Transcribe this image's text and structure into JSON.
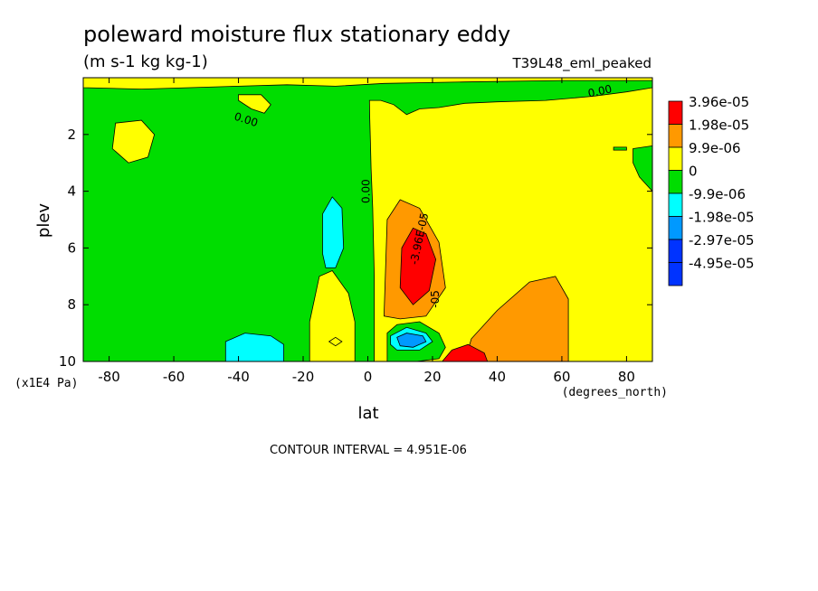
{
  "chart_data": {
    "type": "heatmap",
    "title": "poleward moisture flux stationary eddy",
    "subtitle": "(m s-1 kg kg-1)",
    "run_label": "T39L48_eml_peaked",
    "xlabel": "lat",
    "xunits": "(degrees_north)",
    "ylabel": "plev",
    "yunits": "(x1E4 Pa)",
    "xlim": [
      -88,
      88
    ],
    "ylim": [
      10,
      0
    ],
    "x_ticks": [
      -80,
      -60,
      -40,
      -20,
      0,
      20,
      40,
      60,
      80
    ],
    "x_tick_labels": [
      "-80",
      "-60",
      "-40",
      "-20",
      "0",
      "20",
      "40",
      "60",
      "80"
    ],
    "y_ticks": [
      2,
      4,
      6,
      8,
      10
    ],
    "y_tick_labels": [
      "2",
      "4",
      "6",
      "8",
      "10"
    ],
    "contour_interval_text": "CONTOUR INTERVAL = 4.951E-06",
    "contour_labels": [
      {
        "text": "0.00",
        "lat": 72,
        "plev": 0.6,
        "angle": -12
      },
      {
        "text": "0.00",
        "lat": -38,
        "plev": 1.6,
        "angle": 18
      },
      {
        "text": "0.00",
        "lat": 0.5,
        "plev": 4.0,
        "angle": -90
      },
      {
        "text": "-3.96E-05",
        "lat": 17,
        "plev": 5.7,
        "angle": -78
      },
      {
        "text": "-05",
        "lat": 22,
        "plev": 7.8,
        "angle": -90
      }
    ],
    "legend": {
      "position": "right",
      "labels": [
        "3.96e-05",
        "1.98e-05",
        "9.9e-06",
        "0",
        "-9.9e-06",
        "-1.98e-05",
        "-2.97e-05",
        "-4.95e-05"
      ],
      "colors": [
        "#ff0000",
        "#ff9900",
        "#ffff00",
        "#00dd00",
        "#00ffff",
        "#0099ff",
        "#0033ff",
        "#0033ff"
      ]
    },
    "background_color": "#00dd00",
    "regions": [
      {
        "fill": "#ffff00",
        "points": [
          [
            2,
            10
          ],
          [
            2,
            7
          ],
          [
            1.5,
            4.6
          ],
          [
            1,
            3.2
          ],
          [
            0.8,
            2.3
          ],
          [
            0.6,
            1.4
          ],
          [
            0.5,
            0.8
          ],
          [
            4,
            0.8
          ],
          [
            8,
            0.95
          ],
          [
            12,
            1.3
          ],
          [
            16,
            1.1
          ],
          [
            22,
            1.05
          ],
          [
            30,
            0.9
          ],
          [
            40,
            0.85
          ],
          [
            55,
            0.8
          ],
          [
            70,
            0.65
          ],
          [
            80,
            0.5
          ],
          [
            88,
            0.35
          ],
          [
            88,
            10
          ]
        ]
      },
      {
        "fill": "#ffff00",
        "points": [
          [
            -88,
            0.35
          ],
          [
            -70,
            0.4
          ],
          [
            -55,
            0.35
          ],
          [
            -40,
            0.3
          ],
          [
            -25,
            0.25
          ],
          [
            -10,
            0.3
          ],
          [
            5,
            0.2
          ],
          [
            30,
            0.15
          ],
          [
            60,
            0.1
          ],
          [
            88,
            0.1
          ],
          [
            88,
            0
          ],
          [
            -88,
            0
          ]
        ]
      },
      {
        "fill": "#ffff00",
        "points": [
          [
            -40,
            0.6
          ],
          [
            -33,
            0.6
          ],
          [
            -30,
            0.95
          ],
          [
            -32,
            1.25
          ],
          [
            -36,
            1.1
          ],
          [
            -40,
            0.8
          ]
        ]
      },
      {
        "fill": "#ffff00",
        "points": [
          [
            -78,
            1.6
          ],
          [
            -70,
            1.5
          ],
          [
            -66,
            2.0
          ],
          [
            -68,
            2.8
          ],
          [
            -74,
            3.0
          ],
          [
            -79,
            2.5
          ]
        ]
      },
      {
        "fill": "#ffff00",
        "points": [
          [
            -18,
            10
          ],
          [
            -18,
            8.6
          ],
          [
            -15,
            7.0
          ],
          [
            -11,
            6.8
          ],
          [
            -6,
            7.6
          ],
          [
            -4,
            8.6
          ],
          [
            -4,
            10
          ]
        ]
      },
      {
        "fill": "#00dd00",
        "points": [
          [
            82,
            2.5
          ],
          [
            88,
            2.4
          ],
          [
            88,
            4.0
          ],
          [
            84,
            3.5
          ],
          [
            82,
            3.0
          ]
        ]
      },
      {
        "fill": "#00dd00",
        "points": [
          [
            6,
            10
          ],
          [
            6,
            9.0
          ],
          [
            9,
            8.7
          ],
          [
            16,
            8.6
          ],
          [
            22,
            9.0
          ],
          [
            24,
            9.5
          ],
          [
            22,
            9.9
          ],
          [
            15,
            10
          ]
        ]
      },
      {
        "fill": "#00dd00",
        "points": [
          [
            76,
            2.45
          ],
          [
            80,
            2.45
          ],
          [
            80,
            2.55
          ],
          [
            76,
            2.55
          ]
        ]
      },
      {
        "fill": "#00ffff",
        "points": [
          [
            -44,
            10
          ],
          [
            -44,
            9.3
          ],
          [
            -38,
            9.0
          ],
          [
            -30,
            9.1
          ],
          [
            -26,
            9.4
          ],
          [
            -26,
            10
          ]
        ]
      },
      {
        "fill": "#00ffff",
        "points": [
          [
            -14,
            6.2
          ],
          [
            -14,
            4.8
          ],
          [
            -11,
            4.2
          ],
          [
            -8,
            4.6
          ],
          [
            -7.5,
            6.0
          ],
          [
            -10,
            6.7
          ],
          [
            -13,
            6.7
          ]
        ]
      },
      {
        "fill": "#00ffff",
        "points": [
          [
            7,
            9.1
          ],
          [
            12,
            8.8
          ],
          [
            18,
            9.0
          ],
          [
            20,
            9.3
          ],
          [
            16,
            9.6
          ],
          [
            9,
            9.6
          ],
          [
            7,
            9.4
          ]
        ]
      },
      {
        "fill": "#0099ff",
        "points": [
          [
            9,
            9.15
          ],
          [
            12,
            9.0
          ],
          [
            17,
            9.1
          ],
          [
            18,
            9.3
          ],
          [
            14,
            9.5
          ],
          [
            10,
            9.45
          ]
        ]
      },
      {
        "fill": "#ff9900",
        "points": [
          [
            5,
            8.4
          ],
          [
            6,
            5.0
          ],
          [
            10,
            4.3
          ],
          [
            16,
            4.6
          ],
          [
            22,
            5.8
          ],
          [
            24,
            7.4
          ],
          [
            18,
            8.4
          ],
          [
            10,
            8.5
          ]
        ]
      },
      {
        "fill": "#ff9900",
        "points": [
          [
            30,
            10
          ],
          [
            32,
            9.2
          ],
          [
            40,
            8.2
          ],
          [
            50,
            7.2
          ],
          [
            58,
            7.0
          ],
          [
            62,
            7.8
          ],
          [
            62,
            10
          ]
        ]
      },
      {
        "fill": "#ff0000",
        "points": [
          [
            10,
            7.4
          ],
          [
            10.5,
            6.0
          ],
          [
            14,
            5.3
          ],
          [
            18,
            5.5
          ],
          [
            21,
            6.4
          ],
          [
            19,
            7.5
          ],
          [
            14,
            8.0
          ]
        ]
      },
      {
        "fill": "#ff0000",
        "points": [
          [
            23,
            10
          ],
          [
            26,
            9.6
          ],
          [
            31,
            9.4
          ],
          [
            36,
            9.7
          ],
          [
            37,
            10
          ]
        ]
      },
      {
        "fill": "#ffff00",
        "points": [
          [
            -12,
            9.3
          ],
          [
            -10,
            9.15
          ],
          [
            -8,
            9.3
          ],
          [
            -10,
            9.45
          ]
        ]
      }
    ]
  }
}
